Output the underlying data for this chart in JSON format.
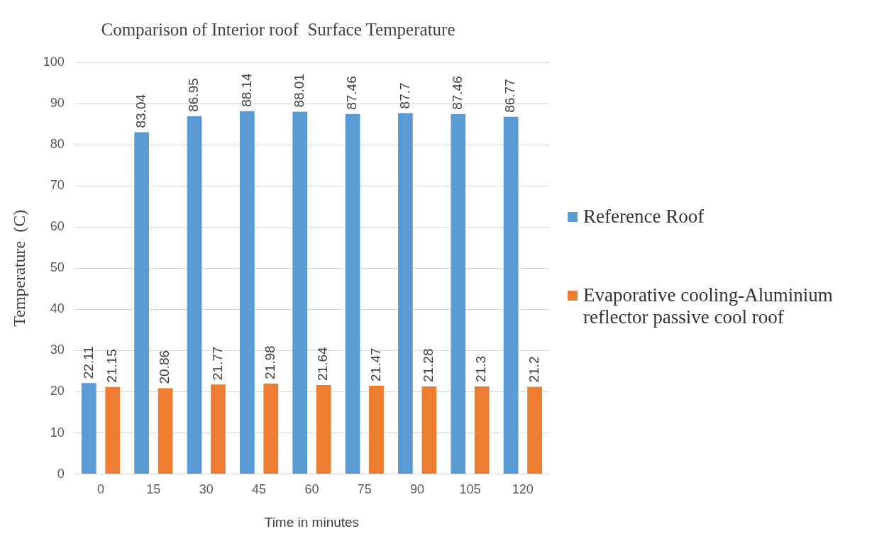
{
  "chart_data": {
    "type": "bar",
    "title": "Comparison of Interior roof  Surface Temperature",
    "xlabel": "Time in minutes",
    "ylabel": "Temperature  (C)",
    "categories": [
      "0",
      "15",
      "30",
      "45",
      "60",
      "75",
      "90",
      "105",
      "120"
    ],
    "series": [
      {
        "name": "Reference Roof",
        "color": "#5b9bd5",
        "values": [
          22.11,
          83.04,
          86.95,
          88.14,
          88.01,
          87.46,
          87.7,
          87.46,
          86.77
        ]
      },
      {
        "name": "Evaporative cooling-Aluminium reflector passive cool roof",
        "color": "#ed7d31",
        "values": [
          21.15,
          20.86,
          21.77,
          21.98,
          21.64,
          21.47,
          21.28,
          21.3,
          21.2
        ]
      }
    ],
    "ylim": [
      0,
      100
    ],
    "yticks": [
      0,
      10,
      20,
      30,
      40,
      50,
      60,
      70,
      80,
      90,
      100
    ],
    "grid": "y",
    "legend": "right",
    "data_labels": true
  }
}
